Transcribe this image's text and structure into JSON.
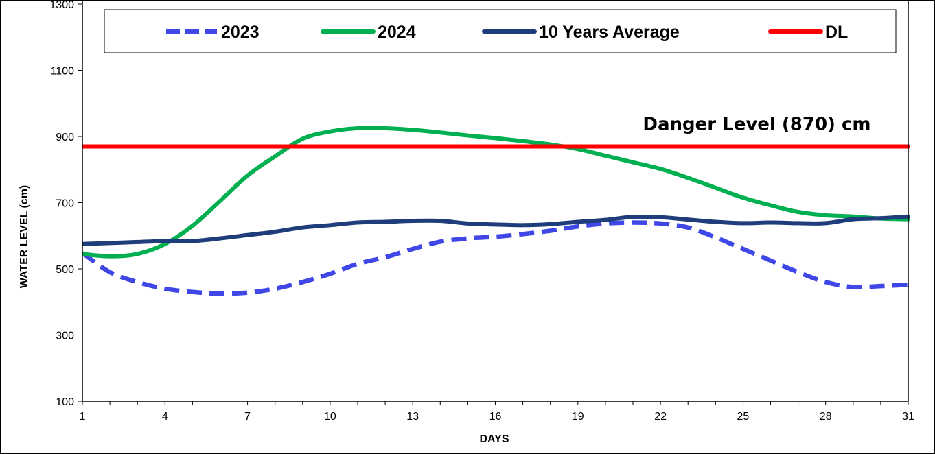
{
  "chart_data": {
    "type": "line",
    "title": "",
    "xlabel": "DAYS",
    "ylabel": "WATER LEVEL (cm)",
    "xlim": [
      1,
      31
    ],
    "ylim": [
      100,
      1300
    ],
    "x_ticks": [
      1,
      4,
      7,
      10,
      13,
      16,
      19,
      22,
      25,
      28,
      31
    ],
    "y_ticks": [
      100,
      300,
      500,
      700,
      900,
      1100,
      1300
    ],
    "grid": false,
    "legend_position": "top",
    "x": [
      1,
      2,
      3,
      4,
      5,
      6,
      7,
      8,
      9,
      10,
      11,
      12,
      13,
      14,
      15,
      16,
      17,
      18,
      19,
      20,
      21,
      22,
      23,
      24,
      25,
      26,
      27,
      28,
      29,
      30,
      31
    ],
    "series": [
      {
        "name": "2023",
        "color": "#3f47e6",
        "style": "dashed",
        "values": [
          548,
          490,
          460,
          440,
          430,
          425,
          428,
          440,
          460,
          485,
          515,
          535,
          560,
          582,
          592,
          597,
          605,
          615,
          628,
          637,
          640,
          637,
          625,
          595,
          560,
          525,
          490,
          460,
          445,
          448,
          452
        ]
      },
      {
        "name": "2024",
        "color": "#00b050",
        "style": "solid",
        "values": [
          545,
          538,
          545,
          575,
          630,
          705,
          782,
          840,
          893,
          915,
          925,
          925,
          920,
          912,
          903,
          895,
          886,
          876,
          862,
          842,
          822,
          802,
          775,
          745,
          715,
          692,
          672,
          662,
          658,
          652,
          650
        ]
      },
      {
        "name": "10 Years Average",
        "color": "#1f3d7a",
        "style": "solid",
        "values": [
          575,
          578,
          581,
          584,
          584,
          592,
          602,
          612,
          625,
          632,
          640,
          642,
          645,
          645,
          637,
          634,
          632,
          635,
          642,
          648,
          657,
          656,
          649,
          642,
          638,
          640,
          638,
          638,
          650,
          653,
          658
        ]
      },
      {
        "name": "DL",
        "color": "#ff0000",
        "style": "solid",
        "values": [
          870,
          870,
          870,
          870,
          870,
          870,
          870,
          870,
          870,
          870,
          870,
          870,
          870,
          870,
          870,
          870,
          870,
          870,
          870,
          870,
          870,
          870,
          870,
          870,
          870,
          870,
          870,
          870,
          870,
          870,
          870
        ]
      }
    ],
    "annotations": [
      {
        "text": "Danger Level (870) cm",
        "x": 25.5,
        "y": 920
      }
    ]
  }
}
